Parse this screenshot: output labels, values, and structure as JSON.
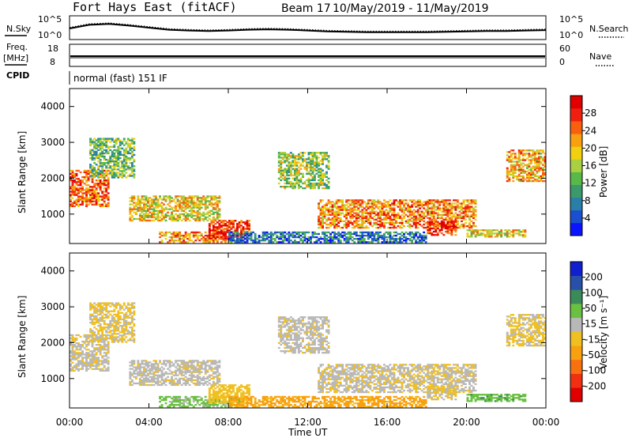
{
  "header": {
    "radar": "Fort Hays East (fitACF)",
    "beam": "Beam 17",
    "dates": "10/May/2019 - 11/May/2019"
  },
  "noise_panel": {
    "left_label": "N.Sky",
    "right_label": "N.Search",
    "left_ticks": [
      "10^5",
      "10^0"
    ],
    "right_ticks": [
      "10^5",
      "10^0"
    ]
  },
  "freq_panel": {
    "left_label_1": "Freq.",
    "left_label_2": "[MHz]",
    "left_ticks": [
      "18",
      "8"
    ],
    "right_label": "Nave",
    "right_ticks": [
      "60",
      "0"
    ]
  },
  "cpid": {
    "label": "CPID",
    "mode": "normal (fast) 151 IF"
  },
  "power_panel": {
    "ylabel": "Slant Range [km]",
    "yticks": [
      "4000",
      "3000",
      "2000",
      "1000"
    ],
    "colorbar_label": "Power [dB]",
    "colorbar_ticks": [
      "28",
      "24",
      "20",
      "16",
      "12",
      "8",
      "4"
    ],
    "colors": [
      "#0a14ff",
      "#1a4fd0",
      "#2a7fa8",
      "#3a9a6a",
      "#58b848",
      "#a8d040",
      "#f0d010",
      "#f8a010",
      "#f86010",
      "#f02010",
      "#e00000"
    ]
  },
  "velocity_panel": {
    "ylabel": "Slant Range [km]",
    "yticks": [
      "4000",
      "3000",
      "2000",
      "1000"
    ],
    "colorbar_label": "Velocity [m s⁻¹]",
    "colorbar_ticks": [
      "200",
      "100",
      "50",
      "15",
      "-15",
      "-50",
      "-100",
      "-200"
    ],
    "colors": [
      "#1020d0",
      "#2850a8",
      "#3a8a5a",
      "#6ac040",
      "#b8b8b8",
      "#f0c020",
      "#f8a010",
      "#f87010",
      "#f03010",
      "#e00000"
    ]
  },
  "xaxis": {
    "ticks": [
      "00:00",
      "04:00",
      "08:00",
      "12:00",
      "16:00",
      "20:00",
      "00:00"
    ],
    "label": "Time UT"
  },
  "chart_data": {
    "type": "heatmap",
    "title": "Fort Hays East (fitACF) Beam 17 10/May/2019 - 11/May/2019",
    "xlabel": "Time UT",
    "ylabel": "Slant Range [km]",
    "xlim_hours": [
      0,
      24
    ],
    "ylim_km": [
      180,
      4500
    ],
    "power_clim_db": [
      0,
      30
    ],
    "velocity_clim_ms": [
      -250,
      250
    ],
    "scatter_regions": [
      {
        "t_start": 0.0,
        "t_end": 2.0,
        "r_min": 1200,
        "r_max": 2200,
        "power": 24,
        "velocity": -10
      },
      {
        "t_start": 1.0,
        "t_end": 3.3,
        "r_min": 2000,
        "r_max": 3100,
        "power": 12,
        "velocity": -20
      },
      {
        "t_start": 3.0,
        "t_end": 7.5,
        "r_min": 800,
        "r_max": 1500,
        "power": 18,
        "velocity": -5
      },
      {
        "t_start": 4.5,
        "t_end": 8.5,
        "r_min": 200,
        "r_max": 500,
        "power": 22,
        "velocity": 25
      },
      {
        "t_start": 7.0,
        "t_end": 9.0,
        "r_min": 300,
        "r_max": 800,
        "power": 27,
        "velocity": -30
      },
      {
        "t_start": 10.5,
        "t_end": 13.0,
        "r_min": 1700,
        "r_max": 2700,
        "power": 14,
        "velocity": -5
      },
      {
        "t_start": 12.5,
        "t_end": 20.5,
        "r_min": 600,
        "r_max": 1400,
        "power": 22,
        "velocity": -10
      },
      {
        "t_start": 8.0,
        "t_end": 18.0,
        "r_min": 200,
        "r_max": 500,
        "power": 6,
        "velocity": -60
      },
      {
        "t_start": 18.0,
        "t_end": 19.5,
        "r_min": 400,
        "r_max": 800,
        "power": 27,
        "velocity": -20
      },
      {
        "t_start": 20.0,
        "t_end": 23.0,
        "r_min": 350,
        "r_max": 550,
        "power": 18,
        "velocity": 40
      },
      {
        "t_start": 22.0,
        "t_end": 24.0,
        "r_min": 1900,
        "r_max": 2800,
        "power": 20,
        "velocity": -20
      }
    ],
    "noise_sky_log10": [
      2.3,
      3.2,
      3.4,
      3.0,
      2.5,
      2.0,
      1.8,
      1.7,
      1.8,
      2.0,
      2.1,
      2.0,
      1.8,
      1.6,
      1.5,
      1.4,
      1.4,
      1.4,
      1.4,
      1.5,
      1.6,
      1.7,
      1.7,
      1.8,
      1.9
    ],
    "freq_mhz": 10.5
  }
}
